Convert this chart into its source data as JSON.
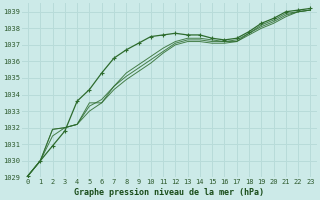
{
  "background_color": "#cceae8",
  "grid_color": "#b8dbd9",
  "line_color": "#2d6b2d",
  "xlabel": "Graphe pression niveau de la mer (hPa)",
  "xlim": [
    -0.5,
    23.5
  ],
  "ylim": [
    1029,
    1039.5
  ],
  "yticks": [
    1029,
    1030,
    1031,
    1032,
    1033,
    1034,
    1035,
    1036,
    1037,
    1038,
    1039
  ],
  "xticks": [
    0,
    1,
    2,
    3,
    4,
    5,
    6,
    7,
    8,
    9,
    10,
    11,
    12,
    13,
    14,
    15,
    16,
    17,
    18,
    19,
    20,
    21,
    22,
    23
  ],
  "series": [
    [
      1029.1,
      1030.0,
      1030.9,
      1031.8,
      1033.6,
      1034.3,
      1035.3,
      1036.2,
      1036.7,
      1037.1,
      1037.5,
      1037.6,
      1037.7,
      1037.6,
      1037.6,
      1037.4,
      1037.3,
      1037.4,
      1037.8,
      1038.3,
      1038.6,
      1039.0,
      1039.1,
      1039.2
    ],
    [
      1029.1,
      1030.0,
      1031.9,
      1032.0,
      1032.2,
      1033.5,
      1033.5,
      1034.5,
      1035.3,
      1035.8,
      1036.3,
      1036.8,
      1037.2,
      1037.4,
      1037.4,
      1037.3,
      1037.2,
      1037.3,
      1037.7,
      1038.2,
      1038.5,
      1038.9,
      1039.0,
      1039.1
    ],
    [
      1029.1,
      1030.0,
      1031.9,
      1032.0,
      1032.2,
      1033.3,
      1033.7,
      1034.5,
      1035.1,
      1035.6,
      1036.1,
      1036.6,
      1037.1,
      1037.3,
      1037.3,
      1037.2,
      1037.2,
      1037.2,
      1037.7,
      1038.1,
      1038.4,
      1038.8,
      1039.0,
      1039.1
    ],
    [
      1029.1,
      1030.0,
      1031.5,
      1032.0,
      1032.2,
      1033.0,
      1033.5,
      1034.3,
      1034.9,
      1035.4,
      1035.9,
      1036.5,
      1037.0,
      1037.2,
      1037.2,
      1037.1,
      1037.1,
      1037.2,
      1037.6,
      1038.0,
      1038.3,
      1038.7,
      1039.0,
      1039.1
    ]
  ],
  "main_series_idx": 0,
  "ylabel_fontsize": 5.5,
  "xlabel_fontsize": 6.0,
  "tick_fontsize": 5.0
}
